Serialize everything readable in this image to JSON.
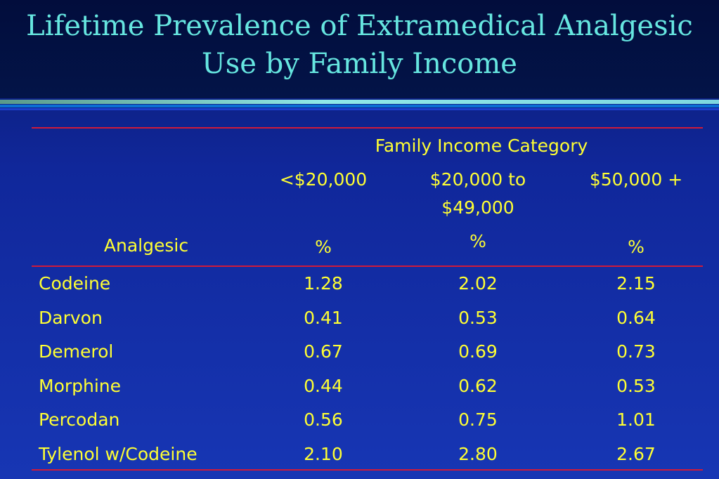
{
  "title": "Lifetime Prevalence of Extramedical Analgesic Use by Family Income",
  "table": {
    "group_header": "Family Income Category",
    "columns": [
      "<$20,000",
      "$20,000 to $49,000",
      "$50,000 +"
    ],
    "row_header_label": "Analgesic",
    "units": [
      "%",
      "%",
      "%"
    ],
    "rows": [
      {
        "name": "Codeine",
        "values": [
          "1.28",
          "2.02",
          "2.15"
        ]
      },
      {
        "name": "Darvon",
        "values": [
          "0.41",
          "0.53",
          "0.64"
        ]
      },
      {
        "name": "Demerol",
        "values": [
          "0.67",
          "0.69",
          "0.73"
        ]
      },
      {
        "name": "Morphine",
        "values": [
          "0.44",
          "0.62",
          "0.53"
        ]
      },
      {
        "name": "Percodan",
        "values": [
          "0.56",
          "0.75",
          "1.01"
        ]
      },
      {
        "name": "Tylenol w/Codeine",
        "values": [
          "2.10",
          "2.80",
          "2.67"
        ]
      }
    ]
  },
  "colors": {
    "title": "#66e6e0",
    "text": "#ffff33",
    "rule": "#d01a3a",
    "background": "#10279a"
  }
}
